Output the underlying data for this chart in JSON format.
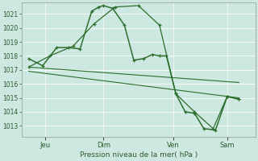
{
  "title": "Pression niveau de la mer( hPa )",
  "bg_color": "#cce8e0",
  "grid_color": "#ffffff",
  "line_color": "#2d6e2d",
  "xlim": [
    0,
    10
  ],
  "ylim": [
    1012.2,
    1021.8
  ],
  "yticks": [
    1013,
    1014,
    1015,
    1016,
    1017,
    1018,
    1019,
    1020,
    1021
  ],
  "xtick_labels": [
    "Jeu",
    "Dim",
    "Ven",
    "Sam"
  ],
  "xtick_positions": [
    1.0,
    3.5,
    6.5,
    8.8
  ],
  "vline_positions": [
    1.0,
    3.5,
    6.5,
    8.8
  ],
  "line1_x": [
    0.3,
    0.9,
    1.5,
    2.0,
    2.5,
    3.0,
    3.3,
    3.5,
    3.9,
    4.4,
    4.8,
    5.2,
    5.6,
    5.9,
    6.2,
    6.6,
    7.0,
    7.4,
    7.8,
    8.3,
    8.8,
    9.3
  ],
  "line1_y": [
    1017.8,
    1017.3,
    1018.6,
    1018.6,
    1018.5,
    1021.2,
    1021.5,
    1021.6,
    1021.4,
    1020.2,
    1017.7,
    1017.8,
    1018.1,
    1018.0,
    1018.0,
    1015.3,
    1014.0,
    1013.9,
    1012.8,
    1012.7,
    1015.1,
    1014.9
  ],
  "line2_x": [
    0.3,
    1.2,
    2.2,
    3.1,
    4.0,
    5.0,
    5.9,
    6.6,
    7.4,
    8.2,
    8.8,
    9.3
  ],
  "line2_y": [
    1017.2,
    1018.0,
    1018.7,
    1020.3,
    1021.5,
    1021.6,
    1020.2,
    1015.3,
    1014.0,
    1012.8,
    1015.1,
    1014.9
  ],
  "line3_x": [
    0.3,
    9.3
  ],
  "line3_y": [
    1017.2,
    1016.1
  ],
  "line4_x": [
    0.3,
    9.3
  ],
  "line4_y": [
    1016.9,
    1015.0
  ]
}
